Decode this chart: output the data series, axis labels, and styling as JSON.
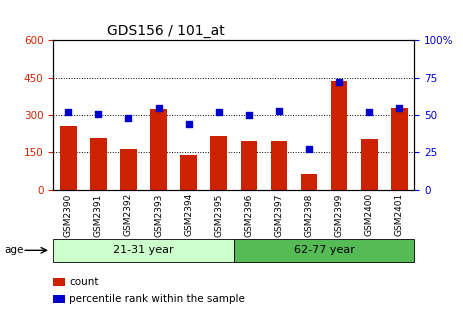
{
  "title": "GDS156 / 101_at",
  "categories": [
    "GSM2390",
    "GSM2391",
    "GSM2392",
    "GSM2393",
    "GSM2394",
    "GSM2395",
    "GSM2396",
    "GSM2397",
    "GSM2398",
    "GSM2399",
    "GSM2400",
    "GSM2401"
  ],
  "bar_values": [
    255,
    210,
    165,
    325,
    140,
    215,
    195,
    195,
    65,
    435,
    205,
    330
  ],
  "scatter_values": [
    52,
    51,
    48,
    55,
    44,
    52,
    50,
    53,
    27,
    72,
    52,
    55
  ],
  "bar_color": "#cc2200",
  "scatter_color": "#0000cc",
  "left_ylim": [
    0,
    600
  ],
  "right_ylim": [
    0,
    100
  ],
  "left_yticks": [
    0,
    150,
    300,
    450,
    600
  ],
  "right_yticks": [
    0,
    25,
    50,
    75,
    100
  ],
  "right_yticklabels": [
    "0",
    "25",
    "50",
    "75",
    "100%"
  ],
  "groups": [
    {
      "label": "21-31 year",
      "start": 0,
      "end": 6,
      "color": "#ccffcc"
    },
    {
      "label": "62-77 year",
      "start": 6,
      "end": 12,
      "color": "#55bb55"
    }
  ],
  "age_label": "age",
  "legend_count_label": "count",
  "legend_percentile_label": "percentile rank within the sample",
  "grid_lines": [
    150,
    300,
    450
  ],
  "bar_width": 0.55
}
